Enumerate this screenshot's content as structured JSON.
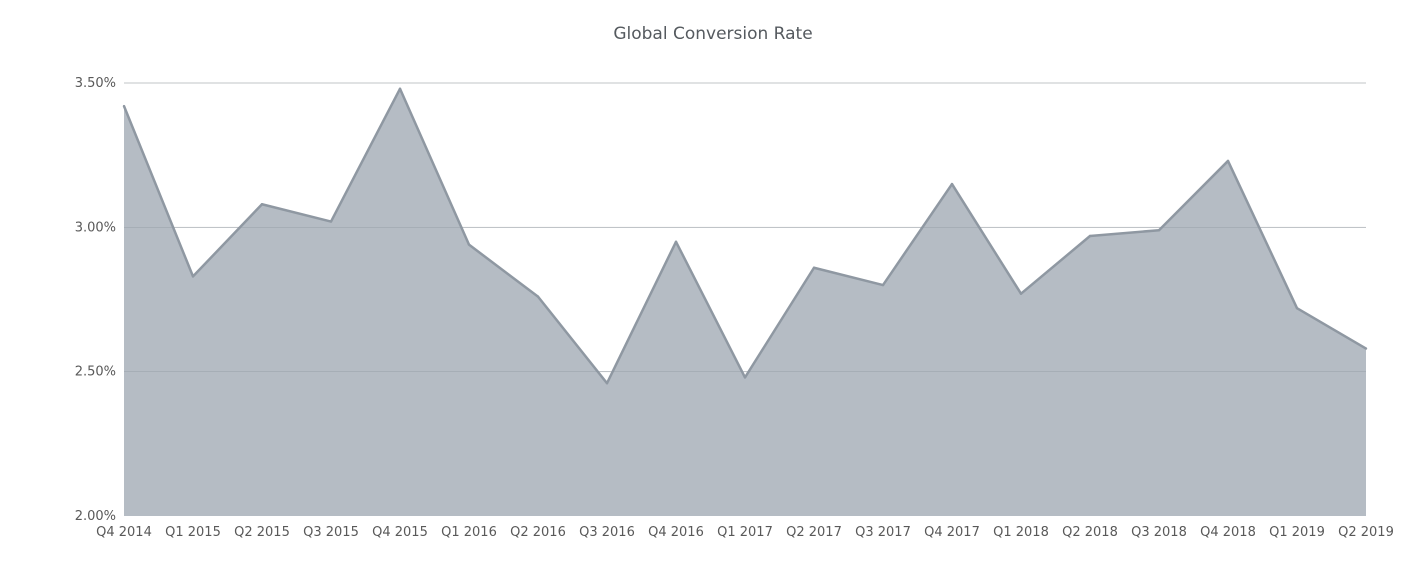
{
  "chart_data": {
    "type": "area",
    "title": "Global Conversion Rate",
    "xlabel": "",
    "ylabel": "",
    "categories": [
      "Q4 2014",
      "Q1 2015",
      "Q2 2015",
      "Q3 2015",
      "Q4 2015",
      "Q1 2016",
      "Q2 2016",
      "Q3 2016",
      "Q4 2016",
      "Q1 2017",
      "Q2 2017",
      "Q3 2017",
      "Q4 2017",
      "Q1 2018",
      "Q2 2018",
      "Q3 2018",
      "Q4 2018",
      "Q1 2019",
      "Q2 2019"
    ],
    "series": [
      {
        "values": [
          3.42,
          2.83,
          3.08,
          3.02,
          3.48,
          2.94,
          2.76,
          2.46,
          2.95,
          2.48,
          2.86,
          2.8,
          3.15,
          2.77,
          2.97,
          2.99,
          3.23,
          2.72,
          2.58
        ]
      }
    ],
    "ylim": [
      2.0,
      3.5
    ],
    "yticks": [
      2.0,
      2.5,
      3.0,
      3.5
    ],
    "ytick_labels": [
      "2.00%",
      "2.50%",
      "3.00%",
      "3.50%"
    ],
    "grid": true,
    "legend": "none",
    "colors": {
      "area_fill": "#b5bcc4",
      "area_line": "#8f98a2",
      "grid": "#d9d9d9",
      "grid_inside": "#8c96a0"
    }
  }
}
